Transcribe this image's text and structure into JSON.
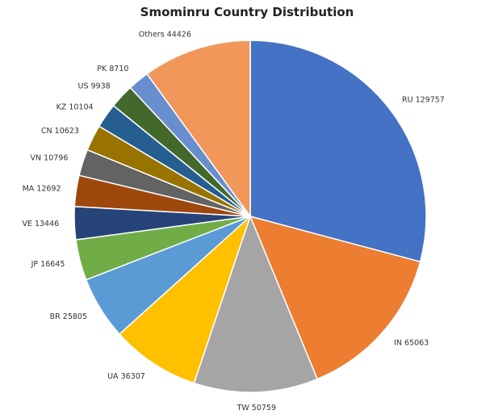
{
  "chart_data": {
    "type": "pie",
    "title": "Smominru Country Distribution",
    "legend": "none",
    "slices": [
      {
        "label": "RU 129757",
        "value": 129757,
        "color": "#4472C4"
      },
      {
        "label": "IN 65063",
        "value": 65063,
        "color": "#ED7D31"
      },
      {
        "label": "TW 50759",
        "value": 50759,
        "color": "#A5A5A5"
      },
      {
        "label": "UA 36307",
        "value": 36307,
        "color": "#FFC000"
      },
      {
        "label": "BR 25805",
        "value": 25805,
        "color": "#5B9BD5"
      },
      {
        "label": "JP 16645",
        "value": 16645,
        "color": "#70AD47"
      },
      {
        "label": "VE 13446",
        "value": 13446,
        "color": "#264478"
      },
      {
        "label": "MA 12692",
        "value": 12692,
        "color": "#9E480E"
      },
      {
        "label": "VN 10796",
        "value": 10796,
        "color": "#636363"
      },
      {
        "label": "CN 10623",
        "value": 10623,
        "color": "#997300"
      },
      {
        "label": "KZ 10104",
        "value": 10104,
        "color": "#255E91"
      },
      {
        "label": "US 9938",
        "value": 9938,
        "color": "#43682B"
      },
      {
        "label": "PK 8710",
        "value": 8710,
        "color": "#698ED0"
      },
      {
        "label": "Others 44426",
        "value": 44426,
        "color": "#F1975A"
      }
    ]
  }
}
